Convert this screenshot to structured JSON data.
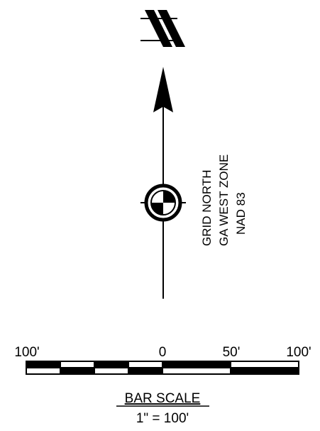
{
  "north_arrow": {
    "symbol": "north-arrow-with-grid-symbol",
    "notes": [
      "GRID NORTH",
      "GA WEST ZONE",
      "NAD 83"
    ]
  },
  "bar_scale": {
    "tick_labels": [
      "100'",
      "0",
      "50'",
      "100'"
    ],
    "title": "BAR SCALE",
    "ratio": "1\" = 100'"
  }
}
